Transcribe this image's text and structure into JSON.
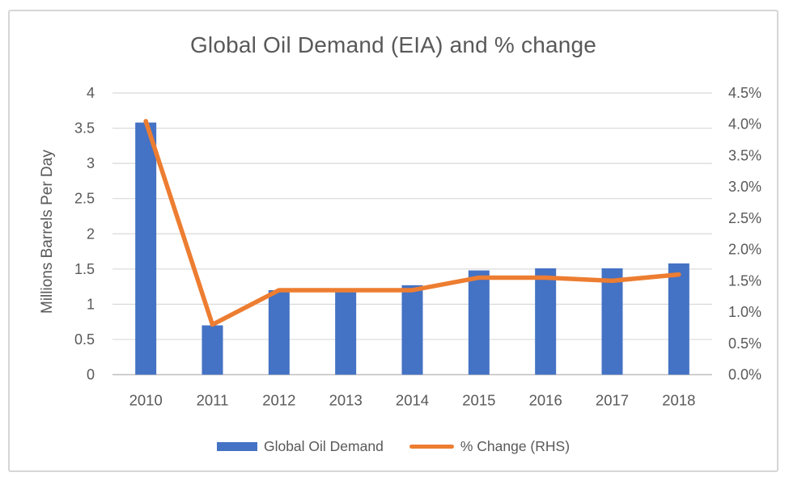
{
  "chart": {
    "title": "Global Oil Demand (EIA) and % change",
    "y_axis_title": "Millions Barrels Per Day",
    "legend": [
      {
        "label": "Global Oil Demand",
        "marker": "bar-swatch"
      },
      {
        "label": "% Change (RHS)",
        "marker": "line-swatch"
      }
    ]
  },
  "chart_data": {
    "type": "bar",
    "subtype": "combo-bar-line-dual-axis",
    "title": "Global Oil Demand (EIA) and % change",
    "categories": [
      "2010",
      "2011",
      "2012",
      "2013",
      "2014",
      "2015",
      "2016",
      "2017",
      "2018"
    ],
    "series": [
      {
        "name": "Global Oil Demand",
        "type": "bar",
        "axis": "left",
        "color": "#4472C4",
        "values": [
          3.58,
          0.7,
          1.2,
          1.17,
          1.27,
          1.48,
          1.51,
          1.51,
          1.58
        ]
      },
      {
        "name": "% Change (RHS)",
        "type": "line",
        "axis": "right",
        "color": "#ED7D31",
        "values": [
          4.05,
          0.8,
          1.35,
          1.35,
          1.35,
          1.55,
          1.55,
          1.5,
          1.6
        ]
      }
    ],
    "left_axis": {
      "label": "Millions Barrels Per Day",
      "min": 0,
      "max": 4,
      "ticks": [
        "0",
        "0.5",
        "1",
        "1.5",
        "2",
        "2.5",
        "3",
        "3.5",
        "4"
      ]
    },
    "right_axis": {
      "label": "% Change",
      "min": 0,
      "max": 4.5,
      "ticks": [
        "0.0%",
        "0.5%",
        "1.0%",
        "1.5%",
        "2.0%",
        "2.5%",
        "3.0%",
        "3.5%",
        "4.0%",
        "4.5%"
      ]
    },
    "grid": true,
    "legend_position": "bottom",
    "colors": {
      "bar": "#4472C4",
      "line": "#ED7D31",
      "text": "#595959",
      "gridline": "#D9D9D9",
      "axis_line": "#BFBFBF",
      "border": "#D6D6D6"
    }
  }
}
